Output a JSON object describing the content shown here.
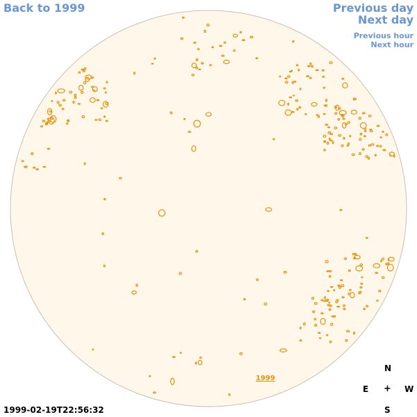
{
  "nav": {
    "back": "Back to 1999",
    "previous_day": "Previous day",
    "next_day": "Next day",
    "previous_hour": "Previous hour",
    "next_hour": "Next hour"
  },
  "timestamp": "1999-02-19T22:56:32",
  "year_link": "1999",
  "compass": {
    "north": "N",
    "east": "E",
    "center": "+",
    "west": "W",
    "south": "S"
  },
  "colors": {
    "link": "#6b96d6",
    "disk_fill": "#fff8ea",
    "disk_stroke": "#c8c0b0",
    "contour": "#e8900a"
  }
}
